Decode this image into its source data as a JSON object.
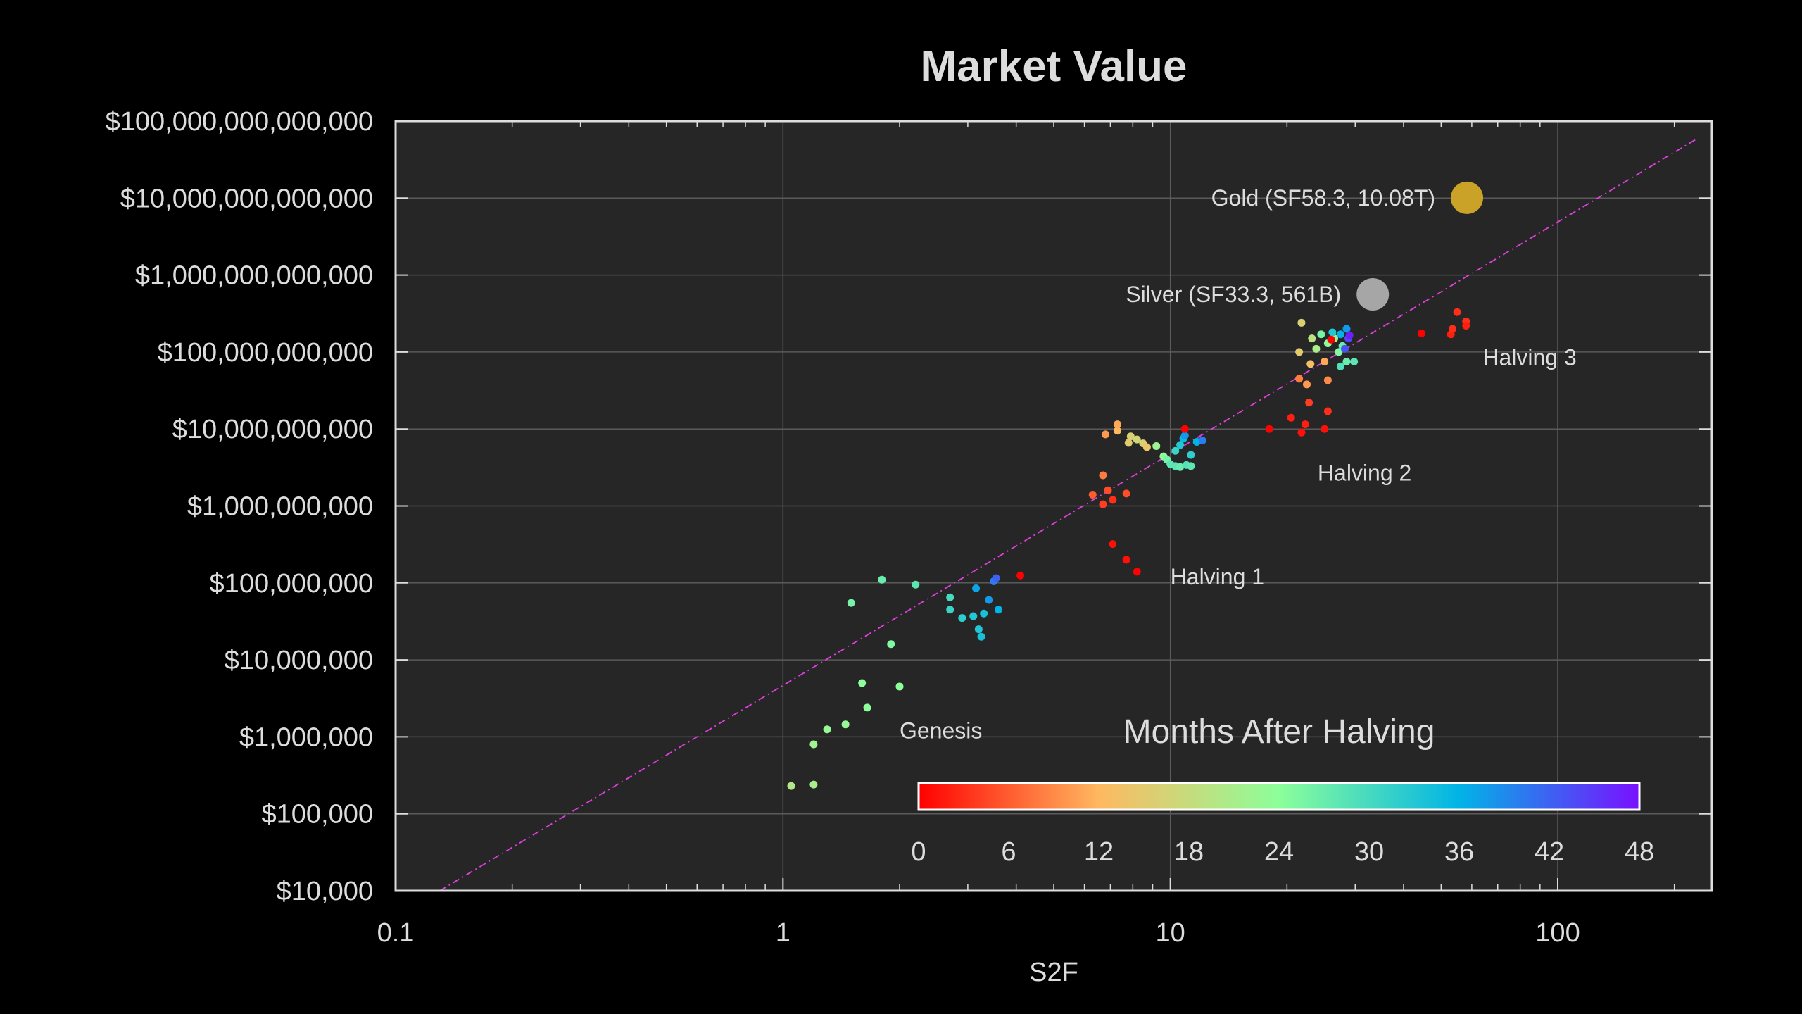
{
  "chart_data": {
    "type": "scatter",
    "title": "Market Value",
    "xlabel": "S2F",
    "ylabel": "",
    "xscale": "log",
    "yscale": "log",
    "xlim": [
      0.1,
      250
    ],
    "ylim": [
      10000,
      100000000000000
    ],
    "grid": true,
    "x_ticks": [
      {
        "value": 0.1,
        "label": "0.1"
      },
      {
        "value": 1,
        "label": "1"
      },
      {
        "value": 10,
        "label": "10"
      },
      {
        "value": 100,
        "label": "100"
      }
    ],
    "y_ticks": [
      {
        "value": 10000,
        "label": "$10,000"
      },
      {
        "value": 100000,
        "label": "$100,000"
      },
      {
        "value": 1000000,
        "label": "$1,000,000"
      },
      {
        "value": 10000000,
        "label": "$10,000,000"
      },
      {
        "value": 100000000,
        "label": "$100,000,000"
      },
      {
        "value": 1000000000,
        "label": "$1,000,000,000"
      },
      {
        "value": 10000000000,
        "label": "$10,000,000,000"
      },
      {
        "value": 100000000000,
        "label": "$100,000,000,000"
      },
      {
        "value": 1000000000000,
        "label": "$1,000,000,000,000"
      },
      {
        "value": 10000000000000,
        "label": "$10,000,000,000,000"
      },
      {
        "value": 100000000000000,
        "label": "$100,000,000,000,000"
      }
    ],
    "trend_line": {
      "x": [
        0.13,
        230
      ],
      "y": [
        10000,
        60000000000000
      ],
      "color": "#e040e0",
      "style": "dash-dot"
    },
    "points": [
      {
        "x": 1.05,
        "y": 230000,
        "months": 20
      },
      {
        "x": 1.2,
        "y": 240000,
        "months": 21
      },
      {
        "x": 1.2,
        "y": 800000,
        "months": 22
      },
      {
        "x": 1.3,
        "y": 1250000,
        "months": 23
      },
      {
        "x": 1.45,
        "y": 1450000,
        "months": 23
      },
      {
        "x": 1.65,
        "y": 2400000,
        "months": 24
      },
      {
        "x": 1.6,
        "y": 5000000,
        "months": 24
      },
      {
        "x": 1.5,
        "y": 55000000,
        "months": 26
      },
      {
        "x": 1.8,
        "y": 110000000,
        "months": 27
      },
      {
        "x": 1.9,
        "y": 16000000,
        "months": 25
      },
      {
        "x": 2.0,
        "y": 4500000,
        "months": 24
      },
      {
        "x": 2.2,
        "y": 95000000,
        "months": 28
      },
      {
        "x": 2.7,
        "y": 65000000,
        "months": 30
      },
      {
        "x": 2.7,
        "y": 45000000,
        "months": 31
      },
      {
        "x": 2.9,
        "y": 35000000,
        "months": 32
      },
      {
        "x": 3.1,
        "y": 37000000,
        "months": 33
      },
      {
        "x": 3.2,
        "y": 25000000,
        "months": 33
      },
      {
        "x": 3.25,
        "y": 20000000,
        "months": 34
      },
      {
        "x": 3.3,
        "y": 40000000,
        "months": 34
      },
      {
        "x": 3.15,
        "y": 85000000,
        "months": 37
      },
      {
        "x": 3.4,
        "y": 60000000,
        "months": 38
      },
      {
        "x": 3.5,
        "y": 105000000,
        "months": 40
      },
      {
        "x": 3.55,
        "y": 115000000,
        "months": 42
      },
      {
        "x": 3.6,
        "y": 45000000,
        "months": 36
      },
      {
        "x": 4.1,
        "y": 125000000,
        "months": 0
      },
      {
        "x": 7.1,
        "y": 320000000,
        "months": 1
      },
      {
        "x": 7.7,
        "y": 200000000,
        "months": 1
      },
      {
        "x": 8.2,
        "y": 140000000,
        "months": 0
      },
      {
        "x": 6.3,
        "y": 1400000000,
        "months": 6
      },
      {
        "x": 6.7,
        "y": 1050000000,
        "months": 4
      },
      {
        "x": 6.9,
        "y": 1600000000,
        "months": 5
      },
      {
        "x": 7.1,
        "y": 1200000000,
        "months": 3
      },
      {
        "x": 7.7,
        "y": 1450000000,
        "months": 5
      },
      {
        "x": 6.7,
        "y": 2500000000,
        "months": 8
      },
      {
        "x": 6.8,
        "y": 8500000000,
        "months": 10
      },
      {
        "x": 7.3,
        "y": 9500000000,
        "months": 12
      },
      {
        "x": 7.3,
        "y": 11500000000,
        "months": 11
      },
      {
        "x": 7.9,
        "y": 8000000000,
        "months": 16
      },
      {
        "x": 8.2,
        "y": 7300000000,
        "months": 17
      },
      {
        "x": 8.5,
        "y": 6500000000,
        "months": 16
      },
      {
        "x": 7.8,
        "y": 6600000000,
        "months": 15
      },
      {
        "x": 8.7,
        "y": 5800000000,
        "months": 14
      },
      {
        "x": 9.2,
        "y": 6000000000,
        "months": 22
      },
      {
        "x": 9.6,
        "y": 4400000000,
        "months": 24
      },
      {
        "x": 9.8,
        "y": 4000000000,
        "months": 26
      },
      {
        "x": 10.0,
        "y": 3500000000,
        "months": 28
      },
      {
        "x": 10.3,
        "y": 3300000000,
        "months": 28
      },
      {
        "x": 10.6,
        "y": 3200000000,
        "months": 27
      },
      {
        "x": 11.0,
        "y": 3400000000,
        "months": 29
      },
      {
        "x": 11.3,
        "y": 3300000000,
        "months": 28
      },
      {
        "x": 10.3,
        "y": 5200000000,
        "months": 31
      },
      {
        "x": 10.6,
        "y": 6200000000,
        "months": 33
      },
      {
        "x": 10.8,
        "y": 7500000000,
        "months": 35
      },
      {
        "x": 10.9,
        "y": 8200000000,
        "months": 38
      },
      {
        "x": 11.3,
        "y": 4600000000,
        "months": 32
      },
      {
        "x": 11.7,
        "y": 6800000000,
        "months": 36
      },
      {
        "x": 12.1,
        "y": 7100000000,
        "months": 40
      },
      {
        "x": 10.9,
        "y": 10000000000,
        "months": 0
      },
      {
        "x": 18.0,
        "y": 10000000000,
        "months": 0
      },
      {
        "x": 20.5,
        "y": 14000000000,
        "months": 2
      },
      {
        "x": 21.8,
        "y": 9000000000,
        "months": 1
      },
      {
        "x": 22.3,
        "y": 11500000000,
        "months": 2
      },
      {
        "x": 22.8,
        "y": 22000000000,
        "months": 4
      },
      {
        "x": 25.0,
        "y": 10000000000,
        "months": 1
      },
      {
        "x": 25.5,
        "y": 17000000000,
        "months": 3
      },
      {
        "x": 21.5,
        "y": 45000000000,
        "months": 8
      },
      {
        "x": 22.5,
        "y": 38000000000,
        "months": 10
      },
      {
        "x": 25.5,
        "y": 43000000000,
        "months": 9
      },
      {
        "x": 23.0,
        "y": 70000000000,
        "months": 13
      },
      {
        "x": 25.0,
        "y": 75000000000,
        "months": 11
      },
      {
        "x": 21.5,
        "y": 100000000000,
        "months": 15
      },
      {
        "x": 21.8,
        "y": 240000000000,
        "months": 16
      },
      {
        "x": 23.2,
        "y": 150000000000,
        "months": 19
      },
      {
        "x": 23.8,
        "y": 110000000000,
        "months": 21
      },
      {
        "x": 24.5,
        "y": 170000000000,
        "months": 26
      },
      {
        "x": 25.5,
        "y": 130000000000,
        "months": 24
      },
      {
        "x": 26.5,
        "y": 150000000000,
        "months": 22
      },
      {
        "x": 27.2,
        "y": 100000000000,
        "months": 25
      },
      {
        "x": 27.8,
        "y": 120000000000,
        "months": 27
      },
      {
        "x": 28.5,
        "y": 75000000000,
        "months": 27
      },
      {
        "x": 29.8,
        "y": 75000000000,
        "months": 28
      },
      {
        "x": 27.5,
        "y": 65000000000,
        "months": 29
      },
      {
        "x": 26.2,
        "y": 180000000000,
        "months": 33
      },
      {
        "x": 27.5,
        "y": 170000000000,
        "months": 36
      },
      {
        "x": 28.5,
        "y": 200000000000,
        "months": 38
      },
      {
        "x": 28.8,
        "y": 150000000000,
        "months": 44
      },
      {
        "x": 29.0,
        "y": 165000000000,
        "months": 47
      },
      {
        "x": 28.2,
        "y": 110000000000,
        "months": 43
      },
      {
        "x": 26.0,
        "y": 145000000000,
        "months": 0
      },
      {
        "x": 44.5,
        "y": 175000000000,
        "months": 0
      },
      {
        "x": 53.0,
        "y": 170000000000,
        "months": 2
      },
      {
        "x": 53.5,
        "y": 200000000000,
        "months": 3
      },
      {
        "x": 55.0,
        "y": 330000000000,
        "months": 3
      },
      {
        "x": 58.0,
        "y": 250000000000,
        "months": 3
      },
      {
        "x": 58.0,
        "y": 220000000000,
        "months": 2
      }
    ],
    "highlights": [
      {
        "label": "Gold (SF58.3, 10.08T)",
        "x": 58.3,
        "y": 10080000000000,
        "color": "#c9a227"
      },
      {
        "label": "Silver (SF33.3, 561B)",
        "x": 33.3,
        "y": 561000000000,
        "color": "#a6a6a6"
      }
    ],
    "annotations": [
      {
        "text": "Genesis",
        "x": 2.0,
        "y": 1200000
      },
      {
        "text": "Halving 1",
        "x": 10.0,
        "y": 120000000
      },
      {
        "text": "Halving 2",
        "x": 24.0,
        "y": 2700000000
      },
      {
        "text": "Halving 3",
        "x": 64.0,
        "y": 85000000000
      }
    ],
    "colorbar": {
      "label": "Months After Halving",
      "min": 0,
      "max": 48,
      "ticks": [
        "0",
        "6",
        "12",
        "18",
        "24",
        "30",
        "36",
        "42",
        "48"
      ],
      "colors": [
        "#ff0000",
        "#ffb860",
        "#8cff9a",
        "#00b4e6",
        "#7a10ff"
      ]
    },
    "colors": {
      "background": "#000000",
      "plot_background": "#262626",
      "grid": "#5a5a5a",
      "axis": "#dddddd",
      "text": "#dddddd"
    }
  }
}
